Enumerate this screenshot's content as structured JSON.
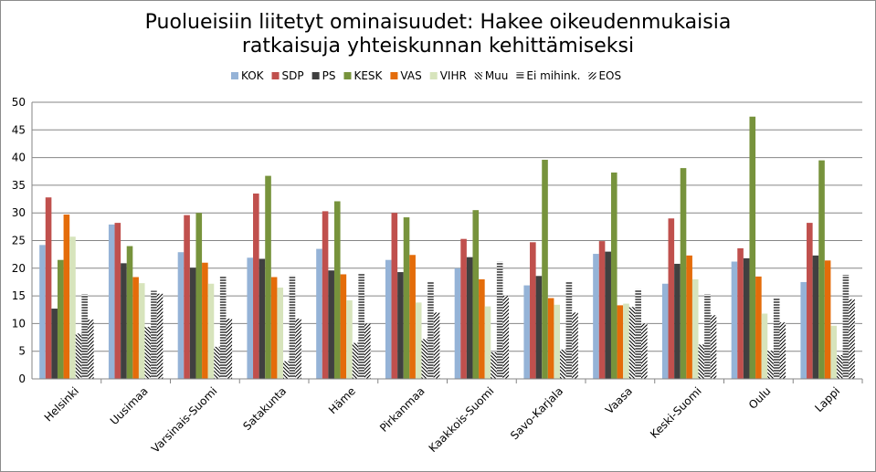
{
  "chart_data": {
    "type": "bar",
    "title_line1": "Puolueisiin liitetyt ominaisuudet: Hakee oikeudenmukaisia",
    "title_line2": "ratkaisuja yhteiskunnan kehittämiseksi",
    "xlabel": "",
    "ylabel": "",
    "ylim": [
      0,
      50
    ],
    "yticks": [
      0,
      5,
      10,
      15,
      20,
      25,
      30,
      35,
      40,
      45,
      50
    ],
    "grid": true,
    "legend_position": "top",
    "categories": [
      "Helsinki",
      "Uusimaa",
      "Varsinais-Suomi",
      "Satakunta",
      "Häme",
      "Pirkanmaa",
      "Kaakkois-Suomi",
      "Savo-Karjala",
      "Vaasa",
      "Keski-Suomi",
      "Oulu",
      "Lappi"
    ],
    "series": [
      {
        "name": "KOK",
        "color": "#95b3d7",
        "pattern": "solid",
        "values": [
          24.2,
          27.9,
          22.9,
          21.9,
          23.5,
          21.5,
          20.0,
          16.9,
          22.6,
          17.2,
          21.2,
          17.5
        ]
      },
      {
        "name": "SDP",
        "color": "#c0504d",
        "pattern": "solid",
        "values": [
          32.8,
          28.2,
          29.6,
          33.5,
          30.3,
          30.0,
          25.3,
          24.7,
          24.9,
          29.0,
          23.6,
          28.2
        ]
      },
      {
        "name": "PS",
        "color": "#404040",
        "pattern": "solid",
        "values": [
          12.7,
          20.9,
          20.1,
          21.7,
          19.6,
          19.3,
          22.0,
          18.6,
          23.0,
          20.8,
          21.8,
          22.3
        ]
      },
      {
        "name": "KESK",
        "color": "#77933c",
        "pattern": "solid",
        "values": [
          21.5,
          24.0,
          30.0,
          36.7,
          32.1,
          29.2,
          30.5,
          39.6,
          37.3,
          38.1,
          47.4,
          39.5
        ]
      },
      {
        "name": "VAS",
        "color": "#e46c0a",
        "pattern": "solid",
        "values": [
          29.7,
          18.4,
          21.0,
          18.4,
          18.9,
          22.4,
          18.0,
          14.6,
          13.3,
          22.3,
          18.5,
          21.4
        ]
      },
      {
        "name": "VIHR",
        "color": "#d7e4bc",
        "pattern": "solid",
        "values": [
          25.7,
          17.3,
          17.2,
          16.5,
          14.2,
          13.8,
          13.1,
          13.4,
          13.6,
          18.0,
          11.8,
          9.6
        ]
      },
      {
        "name": "Muu",
        "color": "#000000",
        "pattern": "diag-back",
        "values": [
          8.2,
          9.4,
          5.8,
          3.2,
          6.5,
          7.2,
          4.8,
          5.3,
          13.0,
          6.2,
          5.1,
          4.3
        ]
      },
      {
        "name": "Ei mihink.",
        "color": "#000000",
        "pattern": "horizontal",
        "values": [
          15.3,
          15.9,
          18.6,
          18.7,
          19.1,
          17.5,
          21.2,
          17.6,
          16.2,
          15.3,
          14.6,
          18.8
        ]
      },
      {
        "name": "EOS",
        "color": "#000000",
        "pattern": "diag-fwd",
        "values": [
          10.7,
          15.4,
          10.9,
          10.9,
          10.0,
          12.0,
          15.0,
          12.0,
          10.0,
          11.5,
          10.2,
          14.4
        ]
      }
    ]
  }
}
